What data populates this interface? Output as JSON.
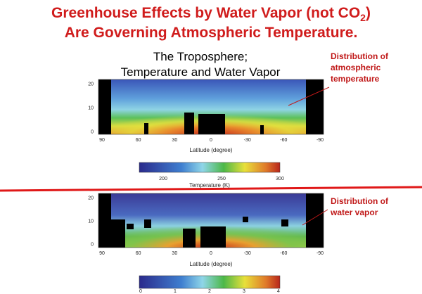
{
  "title": {
    "line1": "Greenhouse Effects by Water Vapor (not CO",
    "line1_subscript": "2",
    "line1_end": ")",
    "line2": "Are Governing Atmospheric Temperature."
  },
  "subtitle": {
    "line1": "The Troposphere;",
    "line2": "Temperature and Water Vapor"
  },
  "annotations": [
    {
      "lines": [
        "Distribution of",
        "atmospheric",
        "temperature"
      ]
    },
    {
      "lines": [
        "Distribution of",
        "water vapor"
      ]
    }
  ],
  "plots": [
    {
      "yticks": [
        "20",
        "10",
        "0"
      ],
      "xticks": [
        "90",
        "60",
        "30",
        "0",
        "-30",
        "-60",
        "-90"
      ],
      "xlabel": "Latitude (degree)",
      "colorbar_ticks": [
        "200",
        "250",
        "300"
      ],
      "colorbar_label": "Temperature (K)"
    },
    {
      "yticks": [
        "20",
        "10",
        "0"
      ],
      "xticks": [
        "90",
        "60",
        "30",
        "0",
        "-30",
        "-60",
        "-90"
      ],
      "xlabel": "Latitude (degree)",
      "colorbar_ticks": [
        "0",
        "1",
        "2",
        "3",
        "4"
      ]
    }
  ]
}
